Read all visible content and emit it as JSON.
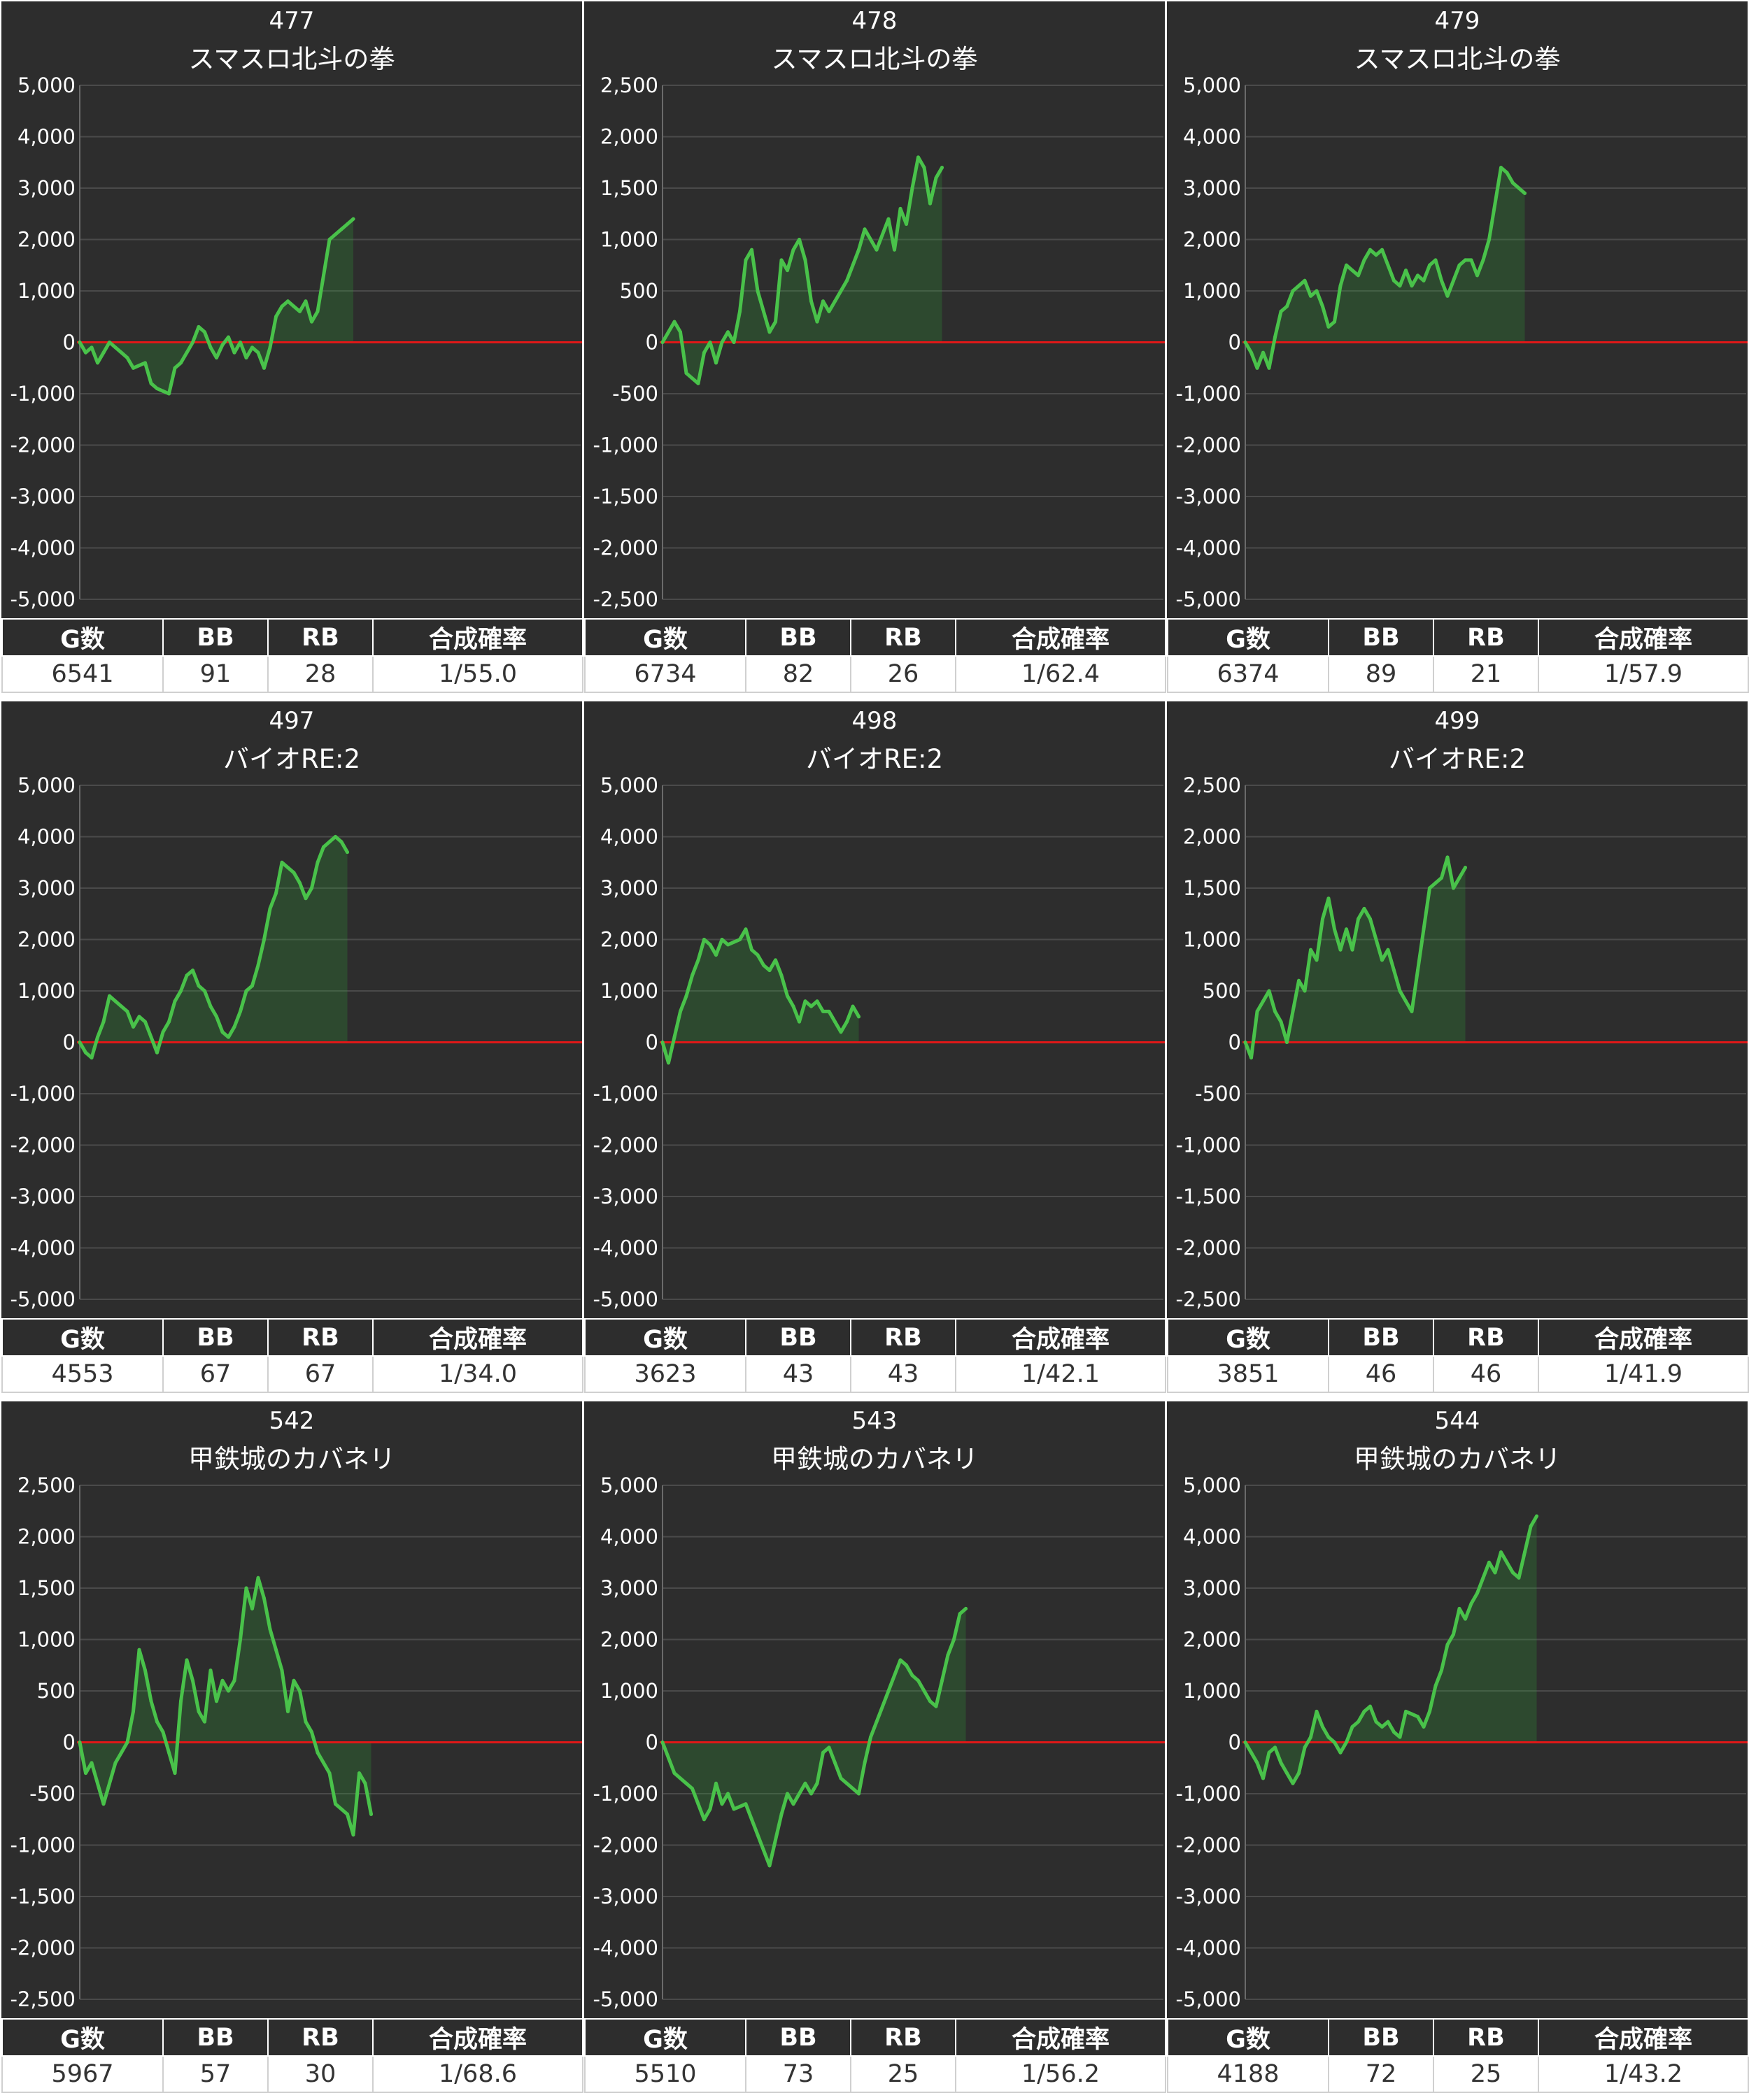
{
  "chart_data": [
    {
      "type": "area",
      "machine_no": "477",
      "machine_name": "スマスロ北斗の拳",
      "ylim": [
        -5000,
        5000
      ],
      "yticks": [
        "5,000",
        "4,000",
        "3,000",
        "2,000",
        "1,000",
        "0",
        "-1,000",
        "-2,000",
        "-3,000",
        "-4,000",
        "-5,000"
      ],
      "values": [
        0,
        -200,
        -100,
        -400,
        -200,
        0,
        -100,
        -200,
        -300,
        -500,
        -450,
        -400,
        -800,
        -900,
        -950,
        -1000,
        -500,
        -400,
        -200,
        0,
        300,
        200,
        -100,
        -300,
        -50,
        100,
        -200,
        0,
        -300,
        -100,
        -200,
        -500,
        -100,
        500,
        700,
        800,
        700,
        600,
        800,
        400,
        600,
        1300,
        2000,
        2100,
        2200,
        2300,
        2400
      ],
      "stats": {
        "headers": [
          "G数",
          "BB",
          "RB",
          "合成確率"
        ],
        "values": [
          "6541",
          "91",
          "28",
          "1/55.0"
        ]
      }
    },
    {
      "type": "area",
      "machine_no": "478",
      "machine_name": "スマスロ北斗の拳",
      "ylim": [
        -2500,
        2500
      ],
      "yticks": [
        "2,500",
        "2,000",
        "1,500",
        "1,000",
        "500",
        "0",
        "-500",
        "-1,000",
        "-1,500",
        "-2,000",
        "-2,500"
      ],
      "values": [
        0,
        100,
        200,
        100,
        -300,
        -350,
        -400,
        -100,
        0,
        -200,
        0,
        100,
        0,
        300,
        800,
        900,
        500,
        300,
        100,
        200,
        800,
        700,
        900,
        1000,
        800,
        400,
        200,
        400,
        300,
        400,
        500,
        600,
        750,
        900,
        1100,
        1000,
        900,
        1050,
        1200,
        900,
        1300,
        1150,
        1500,
        1800,
        1700,
        1350,
        1600,
        1700
      ],
      "stats": {
        "headers": [
          "G数",
          "BB",
          "RB",
          "合成確率"
        ],
        "values": [
          "6734",
          "82",
          "26",
          "1/62.4"
        ]
      }
    },
    {
      "type": "area",
      "machine_no": "479",
      "machine_name": "スマスロ北斗の拳",
      "ylim": [
        -5000,
        5000
      ],
      "yticks": [
        "5,000",
        "4,000",
        "3,000",
        "2,000",
        "1,000",
        "0",
        "-1,000",
        "-2,000",
        "-3,000",
        "-4,000",
        "-5,000"
      ],
      "values": [
        0,
        -200,
        -500,
        -200,
        -500,
        100,
        600,
        700,
        1000,
        1100,
        1200,
        900,
        1000,
        700,
        300,
        400,
        1100,
        1500,
        1400,
        1300,
        1600,
        1800,
        1700,
        1800,
        1500,
        1200,
        1100,
        1400,
        1100,
        1300,
        1200,
        1500,
        1600,
        1200,
        900,
        1200,
        1500,
        1600,
        1600,
        1300,
        1600,
        2000,
        2700,
        3400,
        3300,
        3100,
        3000,
        2900
      ],
      "stats": {
        "headers": [
          "G数",
          "BB",
          "RB",
          "合成確率"
        ],
        "values": [
          "6374",
          "89",
          "21",
          "1/57.9"
        ]
      }
    },
    {
      "type": "area",
      "machine_no": "497",
      "machine_name": "バイオRE:2",
      "ylim": [
        -5000,
        5000
      ],
      "yticks": [
        "5,000",
        "4,000",
        "3,000",
        "2,000",
        "1,000",
        "0",
        "-1,000",
        "-2,000",
        "-3,000",
        "-4,000",
        "-5,000"
      ],
      "values": [
        0,
        -200,
        -300,
        100,
        400,
        900,
        800,
        700,
        600,
        300,
        500,
        400,
        100,
        -200,
        200,
        400,
        800,
        1000,
        1300,
        1400,
        1100,
        1000,
        700,
        500,
        200,
        100,
        300,
        600,
        1000,
        1100,
        1500,
        2000,
        2600,
        2900,
        3500,
        3400,
        3300,
        3100,
        2800,
        3000,
        3500,
        3800,
        3900,
        4000,
        3900,
        3700
      ],
      "stats": {
        "headers": [
          "G数",
          "BB",
          "RB",
          "合成確率"
        ],
        "values": [
          "4553",
          "67",
          "67",
          "1/34.0"
        ]
      }
    },
    {
      "type": "area",
      "machine_no": "498",
      "machine_name": "バイオRE:2",
      "ylim": [
        -5000,
        5000
      ],
      "yticks": [
        "5,000",
        "4,000",
        "3,000",
        "2,000",
        "1,000",
        "0",
        "-1,000",
        "-2,000",
        "-3,000",
        "-4,000",
        "-5,000"
      ],
      "values": [
        0,
        -400,
        100,
        600,
        900,
        1300,
        1600,
        2000,
        1900,
        1700,
        2000,
        1900,
        1950,
        2000,
        2200,
        1800,
        1700,
        1500,
        1400,
        1600,
        1300,
        900,
        700,
        400,
        800,
        700,
        800,
        600,
        600,
        400,
        200,
        400,
        700,
        500
      ],
      "stats": {
        "headers": [
          "G数",
          "BB",
          "RB",
          "合成確率"
        ],
        "values": [
          "3623",
          "43",
          "43",
          "1/42.1"
        ]
      }
    },
    {
      "type": "area",
      "machine_no": "499",
      "machine_name": "バイオRE:2",
      "ylim": [
        -2500,
        2500
      ],
      "yticks": [
        "2,500",
        "2,000",
        "1,500",
        "1,000",
        "500",
        "0",
        "-500",
        "-1,000",
        "-1,500",
        "-2,000",
        "-2,500"
      ],
      "values": [
        0,
        -150,
        300,
        400,
        500,
        300,
        200,
        0,
        300,
        600,
        500,
        900,
        800,
        1200,
        1400,
        1100,
        900,
        1100,
        900,
        1200,
        1300,
        1200,
        1000,
        800,
        900,
        700,
        500,
        400,
        300,
        700,
        1100,
        1500,
        1550,
        1600,
        1800,
        1500,
        1600,
        1700
      ],
      "stats": {
        "headers": [
          "G数",
          "BB",
          "RB",
          "合成確率"
        ],
        "values": [
          "3851",
          "46",
          "46",
          "1/41.9"
        ]
      }
    },
    {
      "type": "area",
      "machine_no": "542",
      "machine_name": "甲鉄城のカバネリ",
      "ylim": [
        -2500,
        2500
      ],
      "yticks": [
        "2,500",
        "2,000",
        "1,500",
        "1,000",
        "500",
        "0",
        "-500",
        "-1,000",
        "-1,500",
        "-2,000",
        "-2,500"
      ],
      "values": [
        0,
        -300,
        -200,
        -400,
        -600,
        -400,
        -200,
        -100,
        0,
        300,
        900,
        700,
        400,
        200,
        100,
        -100,
        -300,
        400,
        800,
        600,
        300,
        200,
        700,
        400,
        600,
        500,
        600,
        1000,
        1500,
        1300,
        1600,
        1400,
        1100,
        900,
        700,
        300,
        600,
        500,
        200,
        100,
        -100,
        -200,
        -300,
        -600,
        -650,
        -700,
        -900,
        -300,
        -400,
        -700
      ],
      "stats": {
        "headers": [
          "G数",
          "BB",
          "RB",
          "合成確率"
        ],
        "values": [
          "5967",
          "57",
          "30",
          "1/68.6"
        ]
      }
    },
    {
      "type": "area",
      "machine_no": "543",
      "machine_name": "甲鉄城のカバネリ",
      "ylim": [
        -5000,
        5000
      ],
      "yticks": [
        "5,000",
        "4,000",
        "3,000",
        "2,000",
        "1,000",
        "0",
        "-1,000",
        "-2,000",
        "-3,000",
        "-4,000",
        "-5,000"
      ],
      "values": [
        0,
        -300,
        -600,
        -700,
        -800,
        -900,
        -1200,
        -1500,
        -1300,
        -800,
        -1200,
        -1000,
        -1300,
        -1250,
        -1200,
        -1500,
        -1800,
        -2100,
        -2400,
        -1900,
        -1400,
        -1000,
        -1200,
        -1000,
        -800,
        -1000,
        -800,
        -200,
        -100,
        -400,
        -700,
        -800,
        -900,
        -1000,
        -400,
        100,
        400,
        700,
        1000,
        1300,
        1600,
        1500,
        1300,
        1200,
        1000,
        800,
        700,
        1200,
        1700,
        2000,
        2500,
        2600
      ],
      "stats": {
        "headers": [
          "G数",
          "BB",
          "RB",
          "合成確率"
        ],
        "values": [
          "5510",
          "73",
          "25",
          "1/56.2"
        ]
      }
    },
    {
      "type": "area",
      "machine_no": "544",
      "machine_name": "甲鉄城のカバネリ",
      "ylim": [
        -5000,
        5000
      ],
      "yticks": [
        "5,000",
        "4,000",
        "3,000",
        "2,000",
        "1,000",
        "0",
        "-1,000",
        "-2,000",
        "-3,000",
        "-4,000",
        "-5,000"
      ],
      "values": [
        0,
        -200,
        -400,
        -700,
        -200,
        -100,
        -400,
        -600,
        -800,
        -600,
        -100,
        100,
        600,
        300,
        100,
        0,
        -200,
        0,
        300,
        400,
        600,
        700,
        400,
        300,
        400,
        200,
        100,
        600,
        550,
        500,
        300,
        600,
        1100,
        1400,
        1900,
        2100,
        2600,
        2400,
        2700,
        2900,
        3200,
        3500,
        3300,
        3700,
        3500,
        3300,
        3200,
        3700,
        4200,
        4400
      ],
      "stats": {
        "headers": [
          "G数",
          "BB",
          "RB",
          "合成確率"
        ],
        "values": [
          "4188",
          "72",
          "25",
          "1/43.2"
        ]
      }
    }
  ]
}
